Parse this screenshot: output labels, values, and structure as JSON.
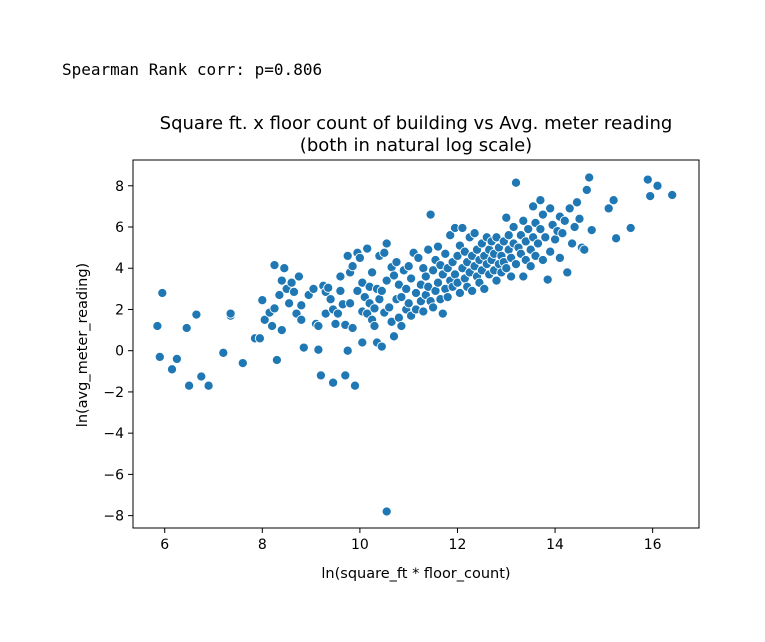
{
  "annotation": "Spearman Rank corr: p=0.806",
  "chart_data": {
    "type": "scatter",
    "title": "Square ft. x floor count of building vs Avg. meter reading",
    "subtitle": "(both in natural log scale)",
    "xlabel": "ln(square_ft * floor_count)",
    "ylabel": "ln(avg_meter_reading)",
    "xlim": [
      5.35,
      16.95
    ],
    "ylim": [
      -8.6,
      9.25
    ],
    "xticks": [
      6,
      8,
      10,
      12,
      14,
      16
    ],
    "yticks": [
      -8,
      -6,
      -4,
      -2,
      0,
      2,
      4,
      6,
      8
    ],
    "xtick_labels": [
      "6",
      "8",
      "10",
      "12",
      "14",
      "16"
    ],
    "ytick_labels": [
      "−8",
      "−6",
      "−4",
      "−2",
      "0",
      "2",
      "4",
      "6",
      "8"
    ],
    "grid": false,
    "marker_color": "#1f77b4",
    "points": [
      [
        5.85,
        1.2
      ],
      [
        5.95,
        2.8
      ],
      [
        5.9,
        -0.3
      ],
      [
        6.15,
        -0.9
      ],
      [
        6.25,
        -0.4
      ],
      [
        6.45,
        1.1
      ],
      [
        6.5,
        -1.7
      ],
      [
        6.65,
        1.75
      ],
      [
        6.75,
        -1.25
      ],
      [
        6.9,
        -1.7
      ],
      [
        7.2,
        -0.1
      ],
      [
        7.35,
        1.7
      ],
      [
        7.35,
        1.8
      ],
      [
        7.6,
        -0.6
      ],
      [
        7.85,
        0.6
      ],
      [
        7.95,
        0.6
      ],
      [
        8.0,
        2.45
      ],
      [
        8.05,
        1.5
      ],
      [
        8.15,
        1.85
      ],
      [
        8.2,
        1.2
      ],
      [
        8.25,
        2.05
      ],
      [
        8.25,
        4.15
      ],
      [
        8.3,
        -0.45
      ],
      [
        8.35,
        2.7
      ],
      [
        8.4,
        3.4
      ],
      [
        8.45,
        4.0
      ],
      [
        8.4,
        1.0
      ],
      [
        8.5,
        3.0
      ],
      [
        8.55,
        2.3
      ],
      [
        8.6,
        3.3
      ],
      [
        8.65,
        2.85
      ],
      [
        8.7,
        1.8
      ],
      [
        8.75,
        3.6
      ],
      [
        8.8,
        2.2
      ],
      [
        8.8,
        1.5
      ],
      [
        8.85,
        0.15
      ],
      [
        8.95,
        2.7
      ],
      [
        9.05,
        3.0
      ],
      [
        9.1,
        1.3
      ],
      [
        9.15,
        0.05
      ],
      [
        9.15,
        1.2
      ],
      [
        9.2,
        -1.2
      ],
      [
        9.25,
        3.15
      ],
      [
        9.3,
        2.85
      ],
      [
        9.3,
        1.8
      ],
      [
        9.35,
        3.05
      ],
      [
        9.4,
        2.5
      ],
      [
        9.45,
        2.0
      ],
      [
        9.45,
        -1.55
      ],
      [
        9.5,
        1.3
      ],
      [
        9.55,
        1.8
      ],
      [
        9.6,
        2.9
      ],
      [
        9.6,
        3.6
      ],
      [
        9.65,
        2.25
      ],
      [
        9.7,
        1.25
      ],
      [
        9.7,
        -1.2
      ],
      [
        9.75,
        4.6
      ],
      [
        9.75,
        0.0
      ],
      [
        9.8,
        2.3
      ],
      [
        9.8,
        3.8
      ],
      [
        9.85,
        4.1
      ],
      [
        9.85,
        1.1
      ],
      [
        9.9,
        -1.7
      ],
      [
        9.95,
        2.9
      ],
      [
        9.95,
        4.75
      ],
      [
        10.0,
        4.5
      ],
      [
        10.05,
        1.9
      ],
      [
        10.05,
        3.3
      ],
      [
        10.05,
        0.4
      ],
      [
        10.1,
        2.6
      ],
      [
        10.15,
        1.8
      ],
      [
        10.15,
        4.95
      ],
      [
        10.2,
        2.3
      ],
      [
        10.2,
        3.1
      ],
      [
        10.25,
        1.5
      ],
      [
        10.25,
        3.8
      ],
      [
        10.3,
        1.2
      ],
      [
        10.3,
        2.05
      ],
      [
        10.35,
        3.0
      ],
      [
        10.35,
        0.4
      ],
      [
        10.4,
        4.6
      ],
      [
        10.4,
        2.5
      ],
      [
        10.45,
        2.9
      ],
      [
        10.45,
        0.2
      ],
      [
        10.5,
        4.75
      ],
      [
        10.5,
        1.85
      ],
      [
        10.55,
        5.2
      ],
      [
        10.55,
        3.4
      ],
      [
        10.55,
        -7.8
      ],
      [
        10.6,
        2.1
      ],
      [
        10.65,
        1.4
      ],
      [
        10.65,
        4.05
      ],
      [
        10.7,
        0.7
      ],
      [
        10.7,
        3.65
      ],
      [
        10.75,
        2.5
      ],
      [
        10.75,
        4.3
      ],
      [
        10.8,
        1.6
      ],
      [
        10.8,
        3.2
      ],
      [
        10.85,
        1.2
      ],
      [
        10.85,
        2.6
      ],
      [
        10.9,
        3.9
      ],
      [
        10.95,
        2.0
      ],
      [
        10.95,
        3.0
      ],
      [
        11.0,
        2.3
      ],
      [
        11.0,
        4.1
      ],
      [
        11.05,
        1.7
      ],
      [
        11.05,
        3.5
      ],
      [
        11.1,
        4.75
      ],
      [
        11.15,
        2.8
      ],
      [
        11.15,
        2.0
      ],
      [
        11.2,
        4.5
      ],
      [
        11.25,
        3.2
      ],
      [
        11.25,
        2.4
      ],
      [
        11.3,
        4.0
      ],
      [
        11.3,
        1.9
      ],
      [
        11.35,
        3.6
      ],
      [
        11.35,
        2.7
      ],
      [
        11.4,
        4.9
      ],
      [
        11.4,
        3.1
      ],
      [
        11.45,
        6.6
      ],
      [
        11.45,
        2.4
      ],
      [
        11.5,
        3.9
      ],
      [
        11.5,
        2.1
      ],
      [
        11.55,
        4.4
      ],
      [
        11.55,
        2.9
      ],
      [
        11.6,
        3.3
      ],
      [
        11.6,
        5.05
      ],
      [
        11.65,
        2.5
      ],
      [
        11.65,
        4.15
      ],
      [
        11.7,
        3.7
      ],
      [
        11.7,
        1.8
      ],
      [
        11.75,
        4.7
      ],
      [
        11.75,
        3.0
      ],
      [
        11.8,
        4.0
      ],
      [
        11.8,
        2.6
      ],
      [
        11.85,
        5.6
      ],
      [
        11.85,
        3.4
      ],
      [
        11.9,
        4.3
      ],
      [
        11.9,
        3.1
      ],
      [
        11.95,
        5.95
      ],
      [
        11.95,
        3.7
      ],
      [
        12.0,
        4.6
      ],
      [
        12.0,
        3.3
      ],
      [
        12.05,
        5.1
      ],
      [
        12.05,
        2.8
      ],
      [
        12.1,
        4.0
      ],
      [
        12.1,
        5.95
      ],
      [
        12.15,
        3.5
      ],
      [
        12.15,
        4.8
      ],
      [
        12.2,
        3.1
      ],
      [
        12.2,
        4.3
      ],
      [
        12.25,
        5.5
      ],
      [
        12.25,
        3.8
      ],
      [
        12.3,
        4.6
      ],
      [
        12.3,
        2.9
      ],
      [
        12.35,
        4.1
      ],
      [
        12.35,
        5.7
      ],
      [
        12.4,
        3.6
      ],
      [
        12.4,
        4.9
      ],
      [
        12.45,
        3.3
      ],
      [
        12.45,
        4.4
      ],
      [
        12.5,
        5.2
      ],
      [
        12.5,
        3.9
      ],
      [
        12.55,
        4.6
      ],
      [
        12.55,
        3.0
      ],
      [
        12.6,
        5.5
      ],
      [
        12.6,
        4.2
      ],
      [
        12.65,
        3.7
      ],
      [
        12.65,
        4.9
      ],
      [
        12.7,
        4.4
      ],
      [
        12.7,
        5.3
      ],
      [
        12.75,
        3.9
      ],
      [
        12.75,
        4.7
      ],
      [
        12.8,
        5.5
      ],
      [
        12.8,
        3.4
      ],
      [
        12.85,
        4.2
      ],
      [
        12.85,
        5.0
      ],
      [
        12.9,
        4.6
      ],
      [
        12.9,
        3.8
      ],
      [
        12.95,
        5.3
      ],
      [
        12.95,
        4.3
      ],
      [
        13.0,
        6.45
      ],
      [
        13.0,
        4.0
      ],
      [
        13.05,
        4.9
      ],
      [
        13.05,
        5.6
      ],
      [
        13.1,
        3.6
      ],
      [
        13.1,
        4.5
      ],
      [
        13.15,
        5.2
      ],
      [
        13.15,
        6.0
      ],
      [
        13.2,
        8.15
      ],
      [
        13.2,
        4.2
      ],
      [
        13.25,
        5.0
      ],
      [
        13.3,
        5.6
      ],
      [
        13.3,
        4.7
      ],
      [
        13.35,
        3.6
      ],
      [
        13.35,
        6.3
      ],
      [
        13.4,
        4.4
      ],
      [
        13.4,
        5.3
      ],
      [
        13.45,
        5.9
      ],
      [
        13.5,
        4.1
      ],
      [
        13.5,
        4.9
      ],
      [
        13.55,
        7.0
      ],
      [
        13.55,
        5.5
      ],
      [
        13.6,
        6.2
      ],
      [
        13.6,
        4.6
      ],
      [
        13.65,
        5.2
      ],
      [
        13.7,
        7.3
      ],
      [
        13.7,
        5.9
      ],
      [
        13.75,
        4.4
      ],
      [
        13.75,
        6.6
      ],
      [
        13.8,
        5.5
      ],
      [
        13.85,
        3.45
      ],
      [
        13.9,
        6.9
      ],
      [
        13.9,
        4.8
      ],
      [
        13.95,
        6.1
      ],
      [
        14.0,
        5.4
      ],
      [
        14.05,
        5.8
      ],
      [
        14.1,
        6.5
      ],
      [
        14.1,
        4.5
      ],
      [
        14.15,
        5.7
      ],
      [
        14.2,
        6.3
      ],
      [
        14.25,
        3.8
      ],
      [
        14.3,
        6.9
      ],
      [
        14.35,
        5.2
      ],
      [
        14.4,
        6.0
      ],
      [
        14.45,
        7.2
      ],
      [
        14.5,
        6.4
      ],
      [
        14.55,
        5.0
      ],
      [
        14.6,
        4.9
      ],
      [
        14.65,
        7.8
      ],
      [
        14.7,
        8.4
      ],
      [
        14.75,
        5.85
      ],
      [
        15.1,
        6.9
      ],
      [
        15.2,
        7.3
      ],
      [
        15.25,
        5.45
      ],
      [
        15.55,
        5.95
      ],
      [
        15.9,
        8.3
      ],
      [
        15.95,
        7.5
      ],
      [
        16.1,
        8.0
      ],
      [
        16.4,
        7.55
      ]
    ]
  }
}
